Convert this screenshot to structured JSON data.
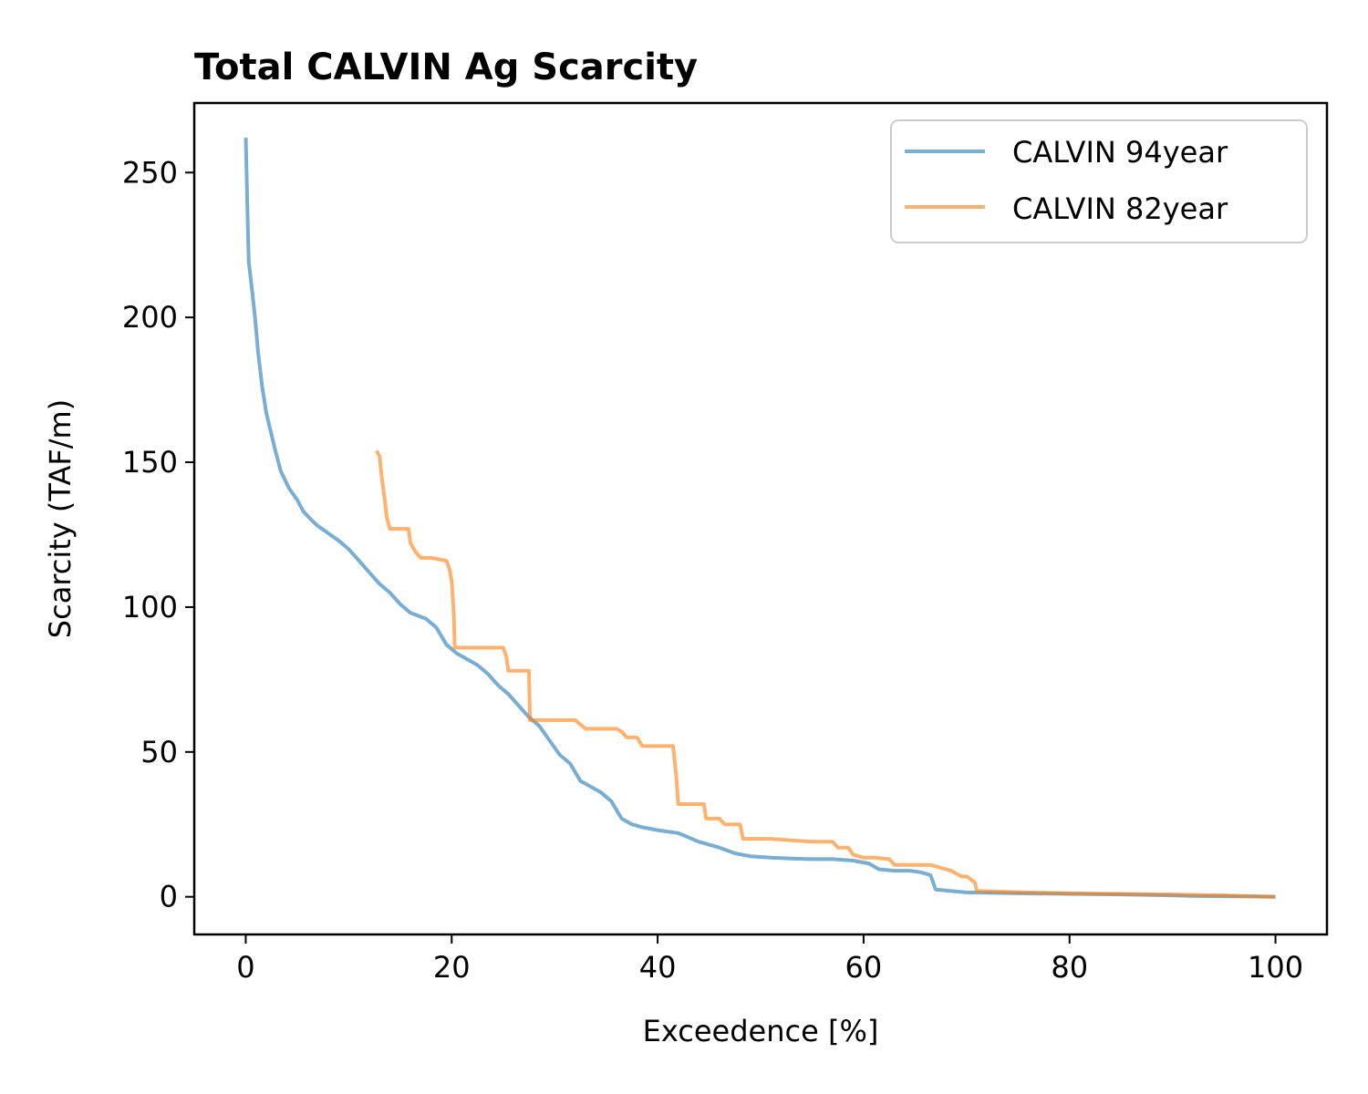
{
  "chart_data": {
    "type": "line",
    "title": "Total CALVIN Ag Scarcity",
    "xlabel": "Exceedence [%]",
    "ylabel": "Scarcity (TAF/m)",
    "xlim": [
      -5,
      105
    ],
    "ylim": [
      -13,
      274
    ],
    "xticks": [
      0,
      20,
      40,
      60,
      80,
      100
    ],
    "yticks": [
      0,
      50,
      100,
      150,
      200,
      250
    ],
    "grid": false,
    "legend_position": "top-right",
    "series": [
      {
        "name": "CALVIN 94year",
        "color": "#1f77b4",
        "opacity": 0.6,
        "x": [
          0,
          0.2,
          0.3,
          0.6,
          0.9,
          1.2,
          1.6,
          2.0,
          2.4,
          2.8,
          3.4,
          4.2,
          5.0,
          5.6,
          6.4,
          7.0,
          7.8,
          9.0,
          10.0,
          11.0,
          12.0,
          13.0,
          14.0,
          15.0,
          16.0,
          17.5,
          18.5,
          19.5,
          20.5,
          21.5,
          22.5,
          23.5,
          24.5,
          25.5,
          26.5,
          27.5,
          28.5,
          29.5,
          30.5,
          31.5,
          32.5,
          33.5,
          34.5,
          35.5,
          36.5,
          37.5,
          38.5,
          40.0,
          42.0,
          44.0,
          46.0,
          47.5,
          49.0,
          51.0,
          53.0,
          55.0,
          57.0,
          59.0,
          60.5,
          61.5,
          63.0,
          64.5,
          65.5,
          66.5,
          67.0,
          70.0,
          75.0,
          80.0,
          85.0,
          90.0,
          92.0,
          95.0,
          98.0,
          100.0
        ],
        "values": [
          262,
          232,
          219,
          210,
          200,
          188,
          176,
          167,
          161,
          155,
          147,
          141,
          137,
          133,
          130,
          128,
          126,
          123,
          120,
          116,
          112,
          108,
          105,
          101,
          98,
          96,
          93,
          87,
          84,
          82,
          80,
          77,
          73,
          70,
          66,
          62,
          59,
          54,
          49,
          46,
          40,
          38,
          36,
          33,
          27,
          25,
          24,
          23,
          22,
          19,
          17,
          15,
          14,
          13.5,
          13.2,
          13.0,
          13.0,
          12.5,
          11.5,
          9.5,
          9.0,
          9.0,
          8.5,
          7.5,
          2.5,
          1.5,
          1.2,
          1.0,
          0.8,
          0.5,
          0.3,
          0.2,
          0.1,
          0.0
        ]
      },
      {
        "name": "CALVIN 82year",
        "color": "#ff7f0e",
        "opacity": 0.6,
        "x": [
          12.7,
          13.0,
          13.2,
          13.5,
          13.7,
          14.0,
          15.8,
          16.0,
          16.5,
          17.0,
          18.0,
          19.5,
          19.8,
          20.0,
          20.2,
          20.3,
          23.0,
          25.0,
          25.3,
          25.5,
          27.5,
          27.6,
          28.0,
          30.0,
          32.0,
          33.0,
          36.0,
          36.5,
          37.0,
          38.0,
          38.5,
          39.0,
          41.5,
          41.8,
          42.0,
          44.5,
          44.7,
          46.0,
          46.5,
          48.0,
          48.3,
          51.0,
          53.0,
          55.0,
          57.0,
          57.5,
          58.5,
          59.0,
          60.0,
          61.0,
          62.5,
          63.0,
          65.0,
          66.5,
          67.5,
          68.5,
          69.5,
          70.0,
          70.8,
          71.0,
          76.0,
          80.0,
          85.0,
          90.0,
          95.0,
          100.0
        ],
        "values": [
          154,
          152,
          145,
          137,
          131,
          127,
          127,
          122,
          119,
          117,
          117,
          116,
          113,
          109,
          98,
          86,
          86,
          86,
          83,
          78,
          78,
          61,
          61,
          61,
          61,
          58,
          58,
          57,
          55,
          55,
          52,
          52,
          52,
          42,
          32,
          32,
          27,
          27,
          25,
          25,
          20,
          20,
          19.5,
          19.0,
          19.0,
          17,
          17,
          14.5,
          13.5,
          13.5,
          13.0,
          11.0,
          11.0,
          11.0,
          10.0,
          9.0,
          7.0,
          7.0,
          5.0,
          2.0,
          1.5,
          1.2,
          1.0,
          0.8,
          0.5,
          0.0
        ]
      }
    ]
  }
}
